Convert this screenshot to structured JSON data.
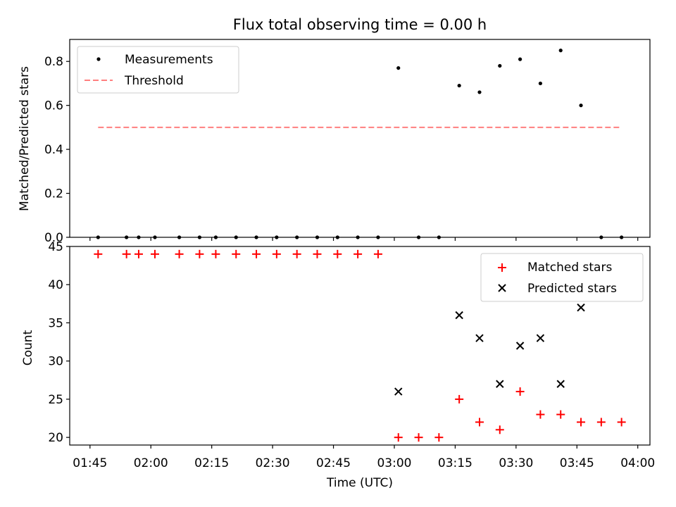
{
  "title": "Flux total observing time = 0.00 h",
  "chart_data": [
    {
      "type": "scatter",
      "panel": "top",
      "ylabel": "Matched/Predicted stars",
      "ylim": [
        0,
        0.9
      ],
      "yticks": [
        0.0,
        0.2,
        0.4,
        0.6,
        0.8
      ],
      "ytick_labels": [
        "0.0",
        "0.2",
        "0.4",
        "0.6",
        "0.8"
      ],
      "grid": false,
      "legend_position": "top-left",
      "series": [
        {
          "name": "Measurements",
          "type": "scatter",
          "marker": "dot",
          "color": "#000000",
          "x": [
            "01:47",
            "01:54",
            "01:57",
            "02:01",
            "02:07",
            "02:12",
            "02:16",
            "02:21",
            "02:26",
            "02:31",
            "02:36",
            "02:41",
            "02:46",
            "02:51",
            "02:56",
            "03:01",
            "03:06",
            "03:11",
            "03:16",
            "03:21",
            "03:26",
            "03:31",
            "03:36",
            "03:41",
            "03:46",
            "03:51",
            "03:56"
          ],
          "y": [
            0,
            0,
            0,
            0,
            0,
            0,
            0,
            0,
            0,
            0,
            0,
            0,
            0,
            0,
            0,
            0.77,
            0,
            0,
            0.69,
            0.66,
            0.78,
            0.81,
            0.7,
            0.85,
            0.6,
            0,
            0
          ]
        },
        {
          "name": "Threshold",
          "type": "line",
          "style": "dashed",
          "color": "#ff7f7f",
          "x": [
            "01:47",
            "03:56"
          ],
          "y": [
            0.5,
            0.5
          ]
        }
      ]
    },
    {
      "type": "scatter",
      "panel": "bottom",
      "xlabel": "Time (UTC)",
      "ylabel": "Count",
      "xlim": [
        "01:40",
        "04:03"
      ],
      "ylim": [
        19,
        45
      ],
      "xticks": [
        "01:45",
        "02:00",
        "02:15",
        "02:30",
        "02:45",
        "03:00",
        "03:15",
        "03:30",
        "03:45",
        "04:00"
      ],
      "yticks": [
        20,
        25,
        30,
        35,
        40,
        45
      ],
      "ytick_labels": [
        "20",
        "25",
        "30",
        "35",
        "40",
        "45"
      ],
      "grid": false,
      "legend_position": "top-right",
      "series": [
        {
          "name": "Matched stars",
          "marker": "plus",
          "color": "#ff0000",
          "x": [
            "01:47",
            "01:54",
            "01:57",
            "02:01",
            "02:07",
            "02:12",
            "02:16",
            "02:21",
            "02:26",
            "02:31",
            "02:36",
            "02:41",
            "02:46",
            "02:51",
            "02:56",
            "03:01",
            "03:06",
            "03:11",
            "03:16",
            "03:21",
            "03:26",
            "03:31",
            "03:36",
            "03:41",
            "03:46",
            "03:51",
            "03:56"
          ],
          "y": [
            44,
            44,
            44,
            44,
            44,
            44,
            44,
            44,
            44,
            44,
            44,
            44,
            44,
            44,
            44,
            20,
            20,
            20,
            25,
            22,
            21,
            26,
            23,
            23,
            22,
            22,
            22
          ]
        },
        {
          "name": "Predicted stars",
          "marker": "x",
          "color": "#000000",
          "x": [
            "03:01",
            "03:16",
            "03:21",
            "03:26",
            "03:31",
            "03:36",
            "03:41",
            "03:46"
          ],
          "y": [
            26,
            36,
            33,
            27,
            32,
            33,
            27,
            37
          ]
        }
      ]
    }
  ]
}
